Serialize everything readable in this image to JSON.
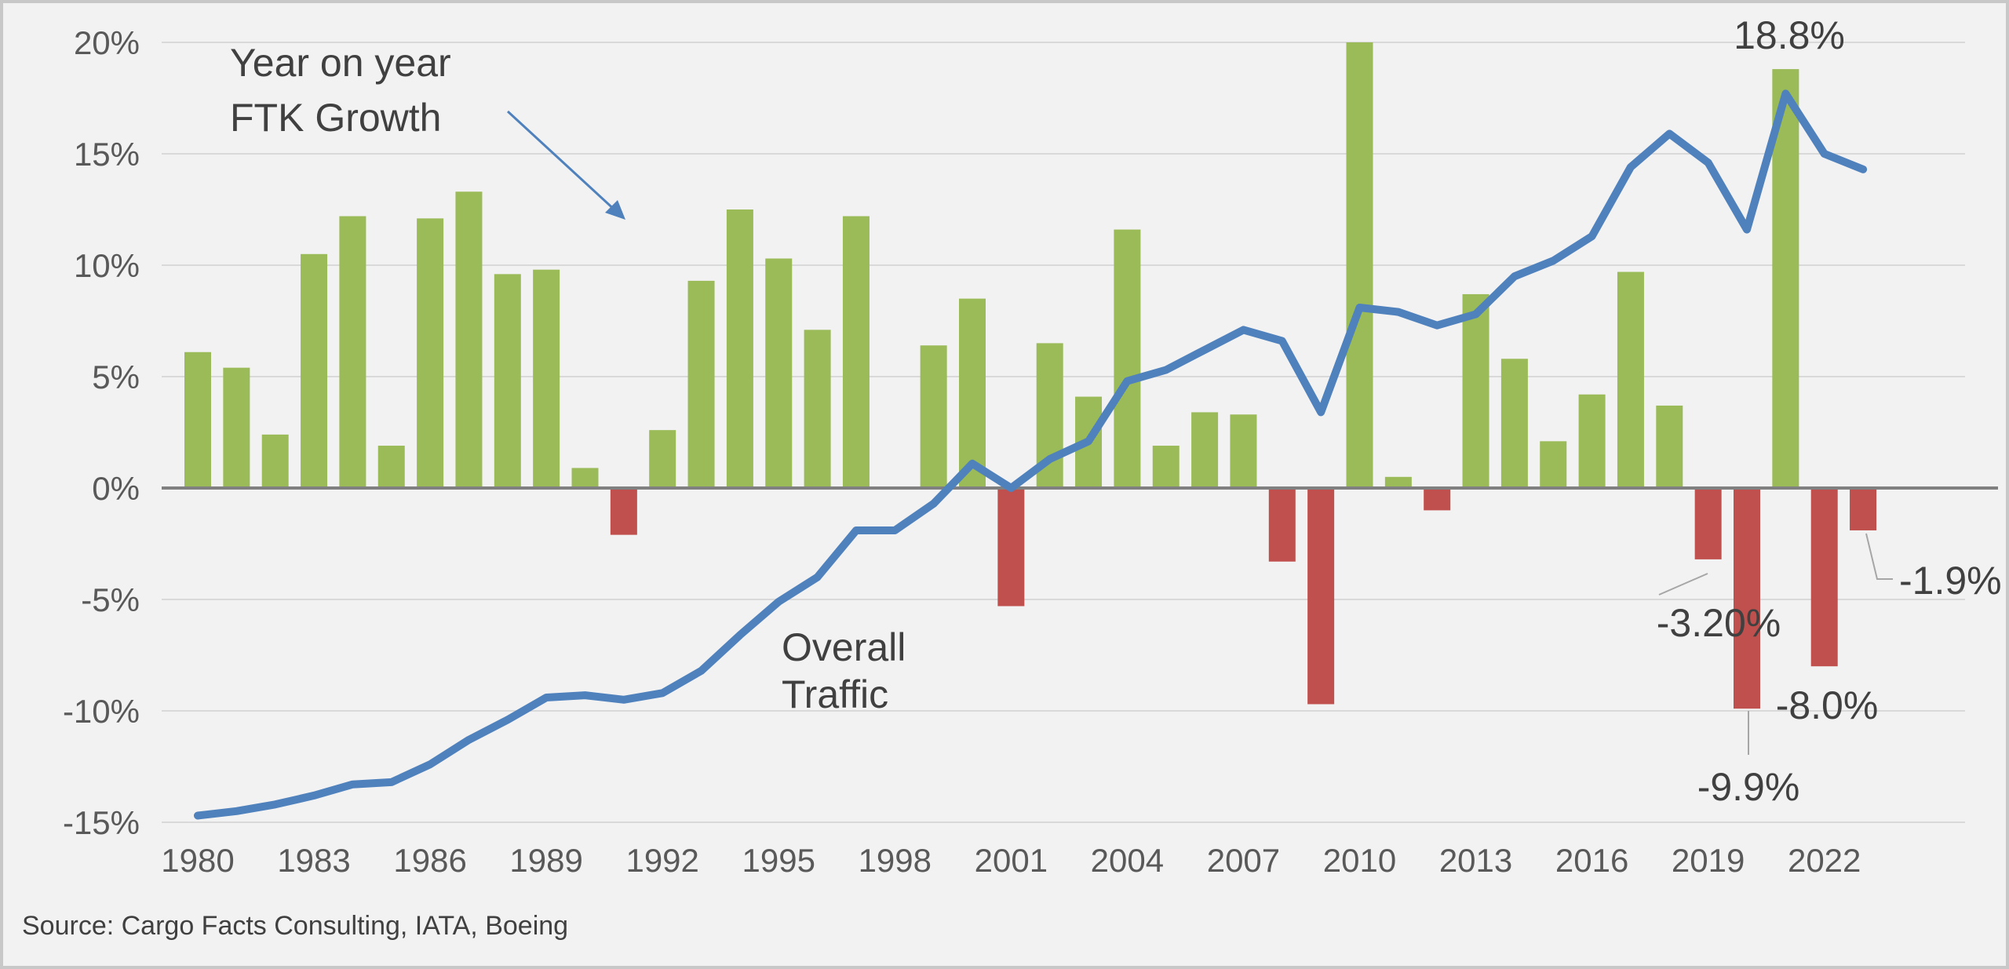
{
  "chart_data": {
    "type": "bar",
    "title": "",
    "xlabel": "",
    "ylabel": "",
    "ylim": [
      -15,
      20
    ],
    "yticks": [
      "20%",
      "15%",
      "10%",
      "5%",
      "0%",
      "-5%",
      "-10%",
      "-15%"
    ],
    "ytick_values": [
      20,
      15,
      10,
      5,
      0,
      -5,
      -10,
      -15
    ],
    "x": [
      1980,
      1981,
      1982,
      1983,
      1984,
      1985,
      1986,
      1987,
      1988,
      1989,
      1990,
      1991,
      1992,
      1993,
      1994,
      1995,
      1996,
      1997,
      1998,
      1999,
      2000,
      2001,
      2002,
      2003,
      2004,
      2005,
      2006,
      2007,
      2008,
      2009,
      2010,
      2011,
      2012,
      2013,
      2014,
      2015,
      2016,
      2017,
      2018,
      2019,
      2020,
      2021,
      2022,
      2023
    ],
    "xticks": [
      "1980",
      "1983",
      "1986",
      "1989",
      "1992",
      "1995",
      "1998",
      "2001",
      "2004",
      "2007",
      "2010",
      "2013",
      "2016",
      "2019",
      "2022"
    ],
    "series": [
      {
        "kind": "bar",
        "values": [
          6.1,
          5.4,
          2.4,
          10.5,
          12.2,
          1.9,
          12.1,
          13.3,
          9.6,
          9.8,
          0.9,
          -2.1,
          2.6,
          9.3,
          12.5,
          10.3,
          7.1,
          12.2,
          null,
          6.4,
          8.5,
          -5.3,
          6.5,
          4.1,
          11.6,
          1.9,
          3.4,
          3.3,
          -3.3,
          -9.7,
          20.0,
          0.5,
          -1.0,
          8.7,
          5.8,
          2.1,
          4.2,
          9.7,
          3.7,
          -3.2,
          -9.9,
          18.8,
          -8.0,
          -1.9
        ]
      },
      {
        "kind": "line",
        "values": [
          -14.7,
          -14.5,
          -14.2,
          -13.8,
          -13.3,
          -13.2,
          -12.4,
          -11.3,
          -10.4,
          -9.4,
          -9.3,
          -9.5,
          -9.2,
          -8.2,
          -6.6,
          -5.1,
          -4.0,
          -1.9,
          -1.9,
          -0.7,
          1.1,
          0.0,
          1.3,
          2.1,
          4.8,
          5.3,
          6.2,
          7.1,
          6.6,
          3.4,
          8.1,
          7.9,
          7.3,
          7.8,
          9.5,
          10.2,
          11.3,
          14.4,
          15.9,
          14.6,
          11.6,
          17.7,
          15.0,
          14.3
        ]
      }
    ],
    "annotations": {
      "bar_series_label_line1": "Year on year",
      "bar_series_label_line2": "FTK Growth",
      "line_series_label_line1": "Overall",
      "line_series_label_line2": "Traffic",
      "label_2019": "-3.20%",
      "label_2020": "-9.9%",
      "label_2021": "18.8%",
      "label_2022": "-8.0%",
      "label_2023": "-1.9%"
    },
    "source": "Source: Cargo Facts Consulting, IATA, Boeing",
    "colors": {
      "positive_bar": "#9bbb59",
      "negative_bar": "#c0504d",
      "line": "#4f81bd",
      "grid": "#d9d9d9",
      "axis": "#808080",
      "background": "#f2f2f2"
    },
    "grid": true,
    "legend": "none"
  }
}
